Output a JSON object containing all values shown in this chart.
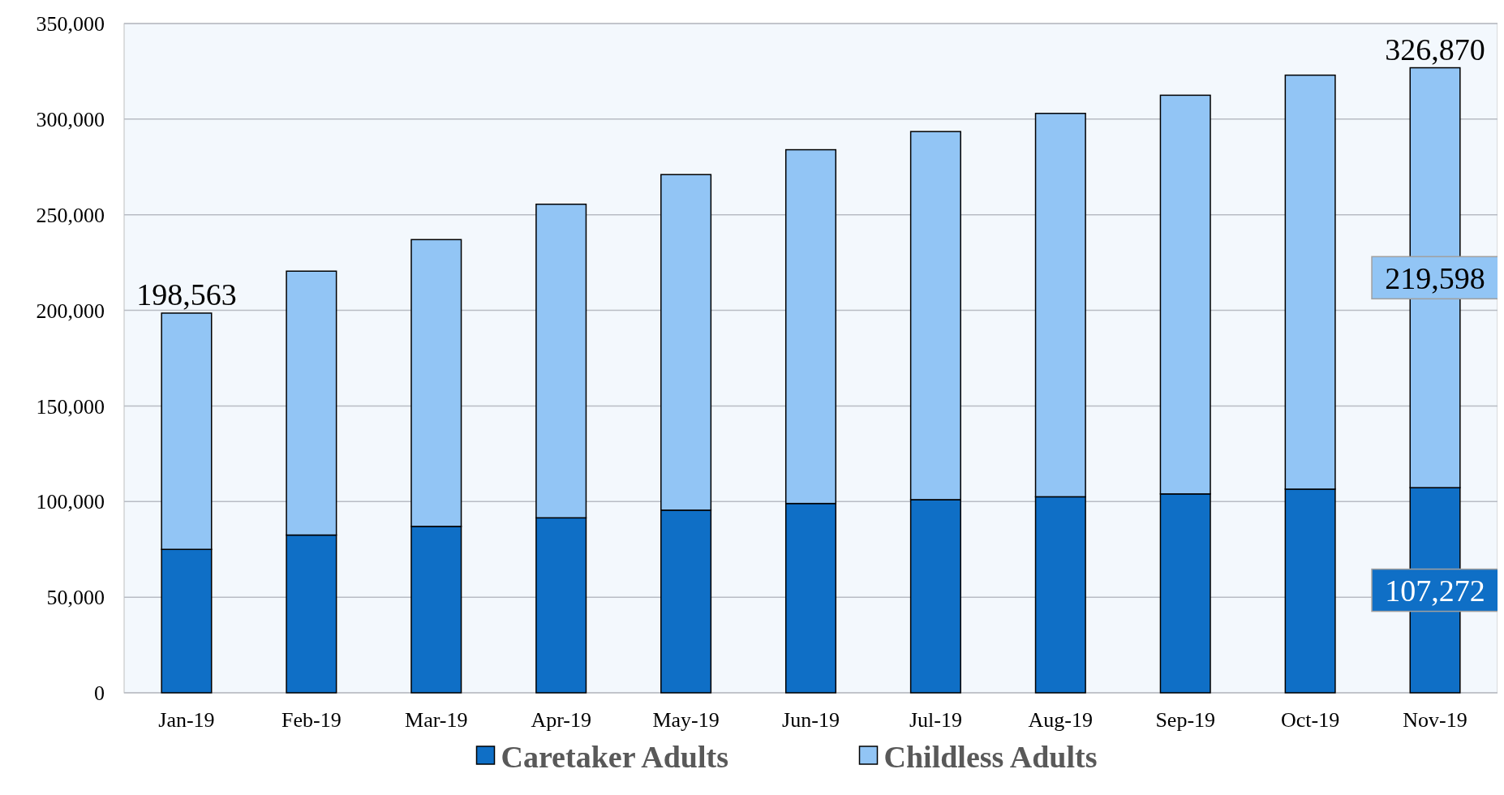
{
  "chart_data": {
    "type": "bar",
    "stacked": true,
    "categories": [
      "Jan-19",
      "Feb-19",
      "Mar-19",
      "Apr-19",
      "May-19",
      "Jun-19",
      "Jul-19",
      "Aug-19",
      "Sep-19",
      "Oct-19",
      "Nov-19"
    ],
    "series": [
      {
        "name": "Caretaker Adults",
        "color": "#0f6fc6",
        "values": [
          75000,
          82500,
          87000,
          91500,
          95500,
          99000,
          101000,
          102500,
          104000,
          106500,
          107272
        ],
        "value_labels": [
          null,
          null,
          null,
          null,
          null,
          null,
          null,
          null,
          null,
          null,
          "107,272"
        ]
      },
      {
        "name": "Childless Adults",
        "color": "#92c5f5",
        "values": [
          123563,
          138000,
          150000,
          164000,
          175500,
          185000,
          192500,
          200500,
          208500,
          216500,
          219598
        ],
        "value_labels": [
          null,
          null,
          null,
          null,
          null,
          null,
          null,
          null,
          null,
          null,
          "219,598"
        ]
      }
    ],
    "totals": [
      "198,563",
      null,
      null,
      null,
      null,
      null,
      null,
      null,
      null,
      null,
      "326,870"
    ],
    "ylim": [
      0,
      350000
    ],
    "yticks": [
      {
        "value": 0,
        "label": "0"
      },
      {
        "value": 50000,
        "label": "50,000"
      },
      {
        "value": 100000,
        "label": "100,000"
      },
      {
        "value": 150000,
        "label": "150,000"
      },
      {
        "value": 200000,
        "label": "200,000"
      },
      {
        "value": 250000,
        "label": "250,000"
      },
      {
        "value": 300000,
        "label": "300,000"
      },
      {
        "value": 350000,
        "label": "350,000"
      }
    ],
    "grid": "y",
    "legend": "bottom"
  }
}
